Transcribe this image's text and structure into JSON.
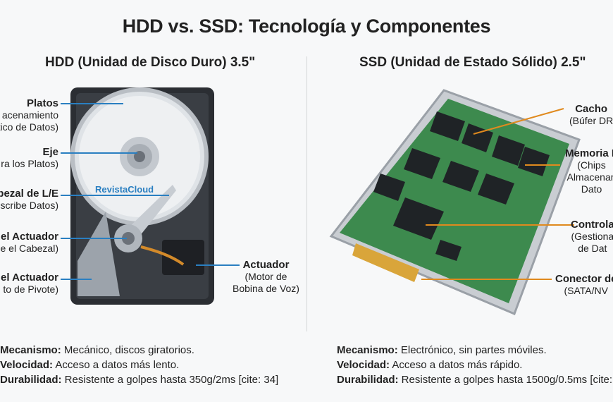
{
  "title": "HDD vs. SSD: Tecnología y Componentes",
  "hdd": {
    "heading": "HDD (Unidad de Disco Duro) 3.5\"",
    "watermark": "RevistaCloud",
    "labels": [
      {
        "name": "Platos",
        "desc": [
          "acenamiento",
          "tico de Datos)"
        ]
      },
      {
        "name": "Eje",
        "desc": [
          "ra los Platos)"
        ]
      },
      {
        "name": "bezal de L/E",
        "desc": [
          "Escribe Datos)"
        ]
      },
      {
        "name": "del Actuador",
        "desc": [
          "e el Cabezal)"
        ]
      },
      {
        "name": "el Actuador",
        "desc": [
          "to de Pivote)"
        ]
      },
      {
        "name": "Actuador",
        "desc": [
          "(Motor de",
          "Bobina de Voz)"
        ]
      }
    ],
    "specs": [
      {
        "key": "Mecanismo:",
        "value": " Mecánico, discos giratorios."
      },
      {
        "key": "Velocidad:",
        "value": " Acceso a datos más lento."
      },
      {
        "key": "Durabilidad:",
        "value": " Resistente a golpes hasta 350g/2ms [cite: 34]"
      }
    ],
    "line_color": "#2a7fc1"
  },
  "ssd": {
    "heading": "SSD (Unidad de Estado Sólido) 2.5\"",
    "labels": [
      {
        "name": "Cacho",
        "desc": [
          "(Búfer DR"
        ]
      },
      {
        "name": "Memoria F",
        "desc": [
          "(Chips",
          "Almacenan",
          "Dato"
        ]
      },
      {
        "name": "Controla",
        "desc": [
          "(Gestiona",
          "de Dat"
        ]
      },
      {
        "name": "Conector de",
        "desc": [
          "(SATA/NV"
        ]
      }
    ],
    "specs": [
      {
        "key": "Mecanismo:",
        "value": " Electrónico, sin partes móviles."
      },
      {
        "key": "Velocidad:",
        "value": " Acceso a datos más rápido."
      },
      {
        "key": "Durabilidad:",
        "value": " Resistente a golpes hasta 1500g/0.5ms [cite:"
      }
    ],
    "line_color": "#e08a1e",
    "pcb_color": "#3d8a4e"
  }
}
